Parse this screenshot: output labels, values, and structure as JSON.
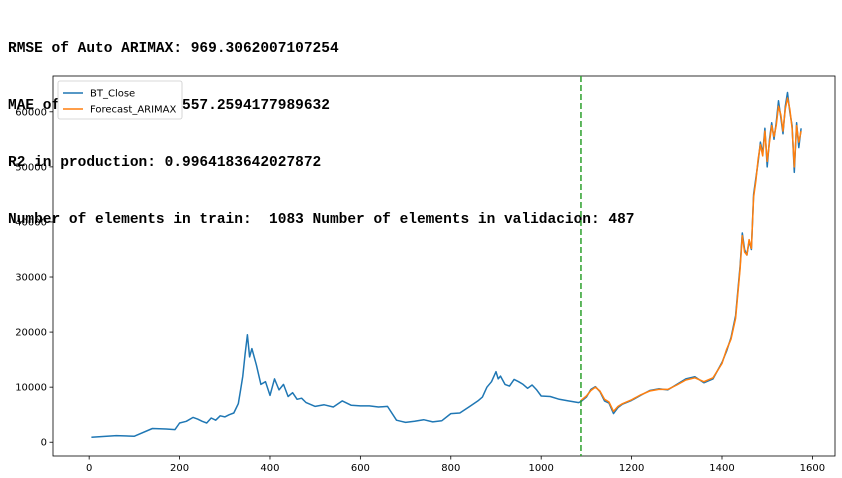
{
  "header": {
    "lines": [
      "RMSE of Auto ARIMAX: 969.3062007107254",
      "MAE of Auto ARIMAX: 557.2594177989632",
      "R2 in production: 0.9964183642027872",
      "Number of elements in train:  1083 Number of elements in validacion: 487"
    ]
  },
  "colors": {
    "bt_close": "#1f77b4",
    "forecast": "#ff7f0e",
    "split_line": "#2ca02c"
  },
  "chart_data": {
    "type": "line",
    "title": "",
    "xlabel": "",
    "ylabel": "",
    "xlim": [
      -80,
      1650
    ],
    "ylim": [
      -2500,
      66500
    ],
    "xticks": [
      0,
      200,
      400,
      600,
      800,
      1000,
      1200,
      1400,
      1600
    ],
    "yticks": [
      0,
      10000,
      20000,
      30000,
      40000,
      50000,
      60000
    ],
    "split_x": 1088,
    "legend": {
      "placement": "top-left"
    },
    "series": [
      {
        "name": "BT_Close",
        "x": [
          5,
          60,
          100,
          140,
          170,
          190,
          200,
          215,
          230,
          240,
          250,
          260,
          270,
          280,
          290,
          300,
          310,
          320,
          330,
          335,
          340,
          345,
          350,
          355,
          360,
          370,
          380,
          390,
          400,
          410,
          420,
          430,
          440,
          450,
          460,
          470,
          480,
          500,
          520,
          540,
          560,
          580,
          600,
          620,
          640,
          660,
          680,
          690,
          700,
          720,
          740,
          760,
          780,
          800,
          820,
          840,
          860,
          870,
          880,
          890,
          900,
          905,
          910,
          920,
          930,
          940,
          950,
          960,
          970,
          980,
          990,
          1000,
          1020,
          1040,
          1060,
          1083,
          1088,
          1100,
          1110,
          1120,
          1130,
          1140,
          1150,
          1160,
          1170,
          1180,
          1200,
          1220,
          1240,
          1260,
          1280,
          1300,
          1320,
          1340,
          1360,
          1380,
          1400,
          1410,
          1420,
          1430,
          1440,
          1445,
          1450,
          1455,
          1460,
          1465,
          1470,
          1475,
          1480,
          1485,
          1490,
          1495,
          1500,
          1505,
          1510,
          1515,
          1520,
          1525,
          1530,
          1535,
          1540,
          1545,
          1550,
          1555,
          1560,
          1565,
          1570,
          1575
        ],
        "y": [
          900,
          1200,
          1100,
          2500,
          2400,
          2300,
          3500,
          3800,
          4500,
          4200,
          3800,
          3500,
          4400,
          4000,
          4800,
          4600,
          5000,
          5300,
          7000,
          9500,
          12000,
          16000,
          19500,
          15500,
          17000,
          14000,
          10500,
          11000,
          8500,
          11500,
          9500,
          10500,
          8300,
          9000,
          7800,
          8000,
          7200,
          6500,
          6800,
          6400,
          7500,
          6700,
          6600,
          6600,
          6400,
          6500,
          4000,
          3800,
          3600,
          3800,
          4100,
          3700,
          3900,
          5200,
          5300,
          6400,
          7500,
          8200,
          10000,
          11000,
          12800,
          11500,
          12000,
          10500,
          10200,
          11400,
          11000,
          10500,
          9800,
          10400,
          9500,
          8400,
          8300,
          7800,
          7500,
          7200,
          7400,
          8200,
          9600,
          10100,
          9200,
          7500,
          7100,
          5200,
          6300,
          6900,
          7600,
          8500,
          9400,
          9700,
          9500,
          10500,
          11500,
          11900,
          10800,
          11500,
          14500,
          16500,
          19000,
          23000,
          32000,
          38000,
          35000,
          34000,
          36500,
          35000,
          45000,
          48000,
          51000,
          54500,
          52500,
          57000,
          50000,
          55000,
          58000,
          55000,
          58000,
          62000,
          59000,
          56000,
          61000,
          63500,
          60000,
          57500,
          49000,
          58000,
          53500,
          57000
        ]
      },
      {
        "name": "Forecast_ARIMAX",
        "x": [
          1088,
          1100,
          1110,
          1120,
          1130,
          1140,
          1150,
          1160,
          1170,
          1180,
          1200,
          1220,
          1240,
          1260,
          1280,
          1300,
          1320,
          1340,
          1360,
          1380,
          1400,
          1410,
          1420,
          1430,
          1440,
          1445,
          1450,
          1455,
          1460,
          1465,
          1470,
          1475,
          1480,
          1485,
          1490,
          1495,
          1500,
          1505,
          1510,
          1515,
          1520,
          1525,
          1530,
          1535,
          1540,
          1545,
          1550,
          1555,
          1560,
          1565,
          1570,
          1575
        ],
        "y": [
          7600,
          8400,
          9400,
          10000,
          9300,
          7800,
          7300,
          5600,
          6500,
          7000,
          7700,
          8600,
          9300,
          9600,
          9600,
          10400,
          11300,
          11700,
          11000,
          11700,
          14300,
          16800,
          18700,
          22500,
          31500,
          37500,
          34500,
          34000,
          36800,
          35200,
          44500,
          47500,
          51500,
          54000,
          52000,
          56500,
          51000,
          54500,
          57500,
          55500,
          57500,
          61000,
          59500,
          56500,
          60500,
          62500,
          60500,
          57000,
          50000,
          57500,
          54500,
          56500
        ]
      }
    ]
  }
}
